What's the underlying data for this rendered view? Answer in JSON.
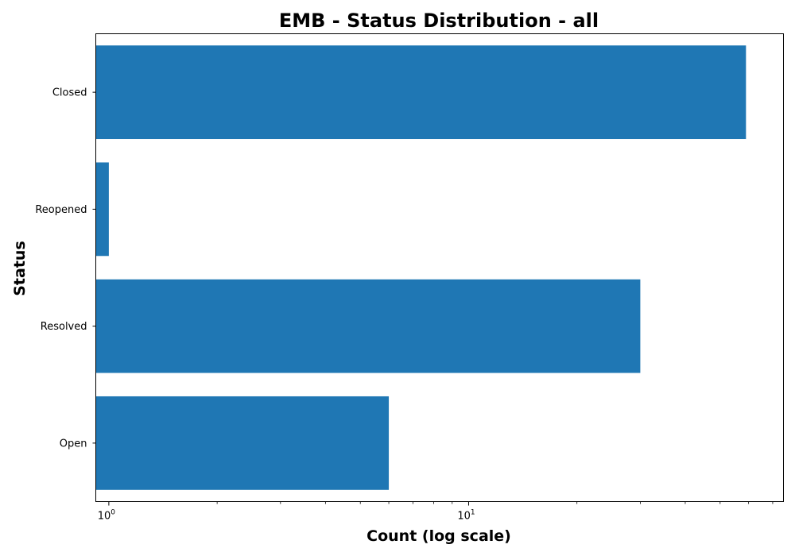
{
  "chart_data": {
    "type": "bar",
    "orientation": "horizontal",
    "title": "EMB - Status Distribution - all",
    "xlabel": "Count (log scale)",
    "ylabel": "Status",
    "x_scale": "log",
    "xlim": [
      0.92,
      75
    ],
    "categories": [
      "Open",
      "Resolved",
      "Reopened",
      "Closed"
    ],
    "values": [
      6,
      30,
      1,
      59
    ],
    "x_ticks": [
      {
        "value": 1,
        "base": "10",
        "exponent": "0"
      },
      {
        "value": 10,
        "base": "10",
        "exponent": "1"
      }
    ],
    "bar_color": "#1f77b4",
    "grid": false,
    "legend": "none"
  }
}
